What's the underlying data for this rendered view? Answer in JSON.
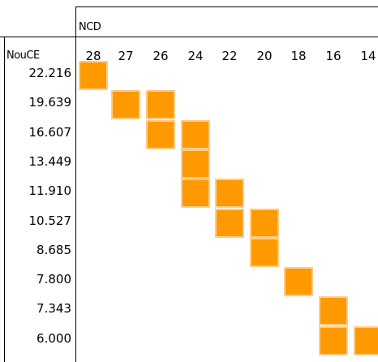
{
  "col_header": "NCD",
  "row_header": "NouCE",
  "columns": [
    "28",
    "27",
    "26",
    "24",
    "22",
    "20",
    "18",
    "16",
    "14"
  ],
  "rows": [
    "22.216",
    "19.639",
    "16.607",
    "13.449",
    "11.910",
    "10.527",
    "8.685",
    "7.800",
    "7.343",
    "6.000"
  ],
  "cells": [
    [
      0,
      0
    ],
    [
      1,
      1
    ],
    [
      1,
      2
    ],
    [
      2,
      2
    ],
    [
      2,
      3
    ],
    [
      3,
      3
    ],
    [
      4,
      3
    ],
    [
      4,
      4
    ],
    [
      5,
      4
    ],
    [
      5,
      5
    ],
    [
      6,
      5
    ],
    [
      7,
      6
    ],
    [
      8,
      7
    ],
    [
      9,
      7
    ],
    [
      9,
      8
    ]
  ],
  "colors": {
    "cell_fill": "#ff9900",
    "cell_border": "#ffcc88"
  }
}
